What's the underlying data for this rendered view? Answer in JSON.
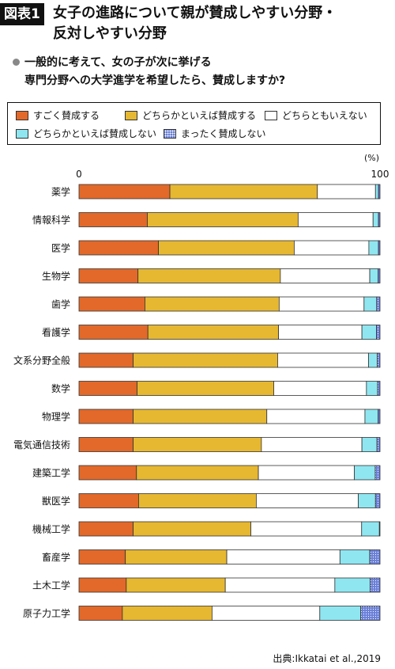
{
  "header": {
    "badge": "図表1",
    "title_line1": "女子の進路について親が賛成しやすい分野・",
    "title_line2": "反対しやすい分野",
    "question_line1": "一般的に考えて、女の子が次に挙げる",
    "question_line2": "専門分野への大学進学を希望したら、賛成しますか?"
  },
  "legend": [
    {
      "label": "すごく賛成する",
      "color": "#E2692A"
    },
    {
      "label": "どちらかといえば賛成する",
      "color": "#E6B731"
    },
    {
      "label": "どちらともいえない",
      "color": "#FFFFFF"
    },
    {
      "label": "どちらかといえば賛成しない",
      "color": "#8FE6F0"
    },
    {
      "label": "まったく賛成しない",
      "color": "#6A7FD8"
    }
  ],
  "axis": {
    "unit": "(%)",
    "min_label": "0",
    "max_label": "100"
  },
  "source": "出典:Ikkatai et al.,2019",
  "chart_data": {
    "type": "bar",
    "stacked": true,
    "orientation": "horizontal",
    "xlim": [
      0,
      100
    ],
    "categories": [
      "薬学",
      "情報科学",
      "医学",
      "生物学",
      "歯学",
      "看護学",
      "文系分野全般",
      "数学",
      "物理学",
      "電気通信技術",
      "建築工学",
      "獣医学",
      "機械工学",
      "畜産学",
      "土木工学",
      "原子力工学"
    ],
    "series": [
      {
        "name": "すごく賛成する",
        "values": [
          30.2,
          22.7,
          26.4,
          19.6,
          21.9,
          22.9,
          18.0,
          19.3,
          18.0,
          18.0,
          19.1,
          19.8,
          18.0,
          15.4,
          15.7,
          14.4
        ]
      },
      {
        "name": "どちらかといえば賛成する",
        "values": [
          49.0,
          50.1,
          45.1,
          47.3,
          44.6,
          43.4,
          48.0,
          45.4,
          44.4,
          42.6,
          40.5,
          39.1,
          39.1,
          33.7,
          32.9,
          29.8
        ]
      },
      {
        "name": "どちらともいえない",
        "values": [
          19.3,
          24.9,
          24.8,
          29.7,
          28.2,
          27.7,
          30.2,
          30.8,
          32.6,
          33.4,
          31.9,
          33.9,
          36.8,
          37.6,
          36.4,
          35.8
        ]
      },
      {
        "name": "どちらかといえば賛成しない",
        "values": [
          1.0,
          1.8,
          3.2,
          2.8,
          4.2,
          4.8,
          2.9,
          3.7,
          4.4,
          5.0,
          6.9,
          5.7,
          5.9,
          9.9,
          11.7,
          13.6
        ]
      },
      {
        "name": "まったく賛成しない",
        "values": [
          0.5,
          0.5,
          0.5,
          0.6,
          1.1,
          1.2,
          0.9,
          0.8,
          0.6,
          1.0,
          1.6,
          1.5,
          0.2,
          3.4,
          3.3,
          6.4
        ]
      }
    ]
  }
}
